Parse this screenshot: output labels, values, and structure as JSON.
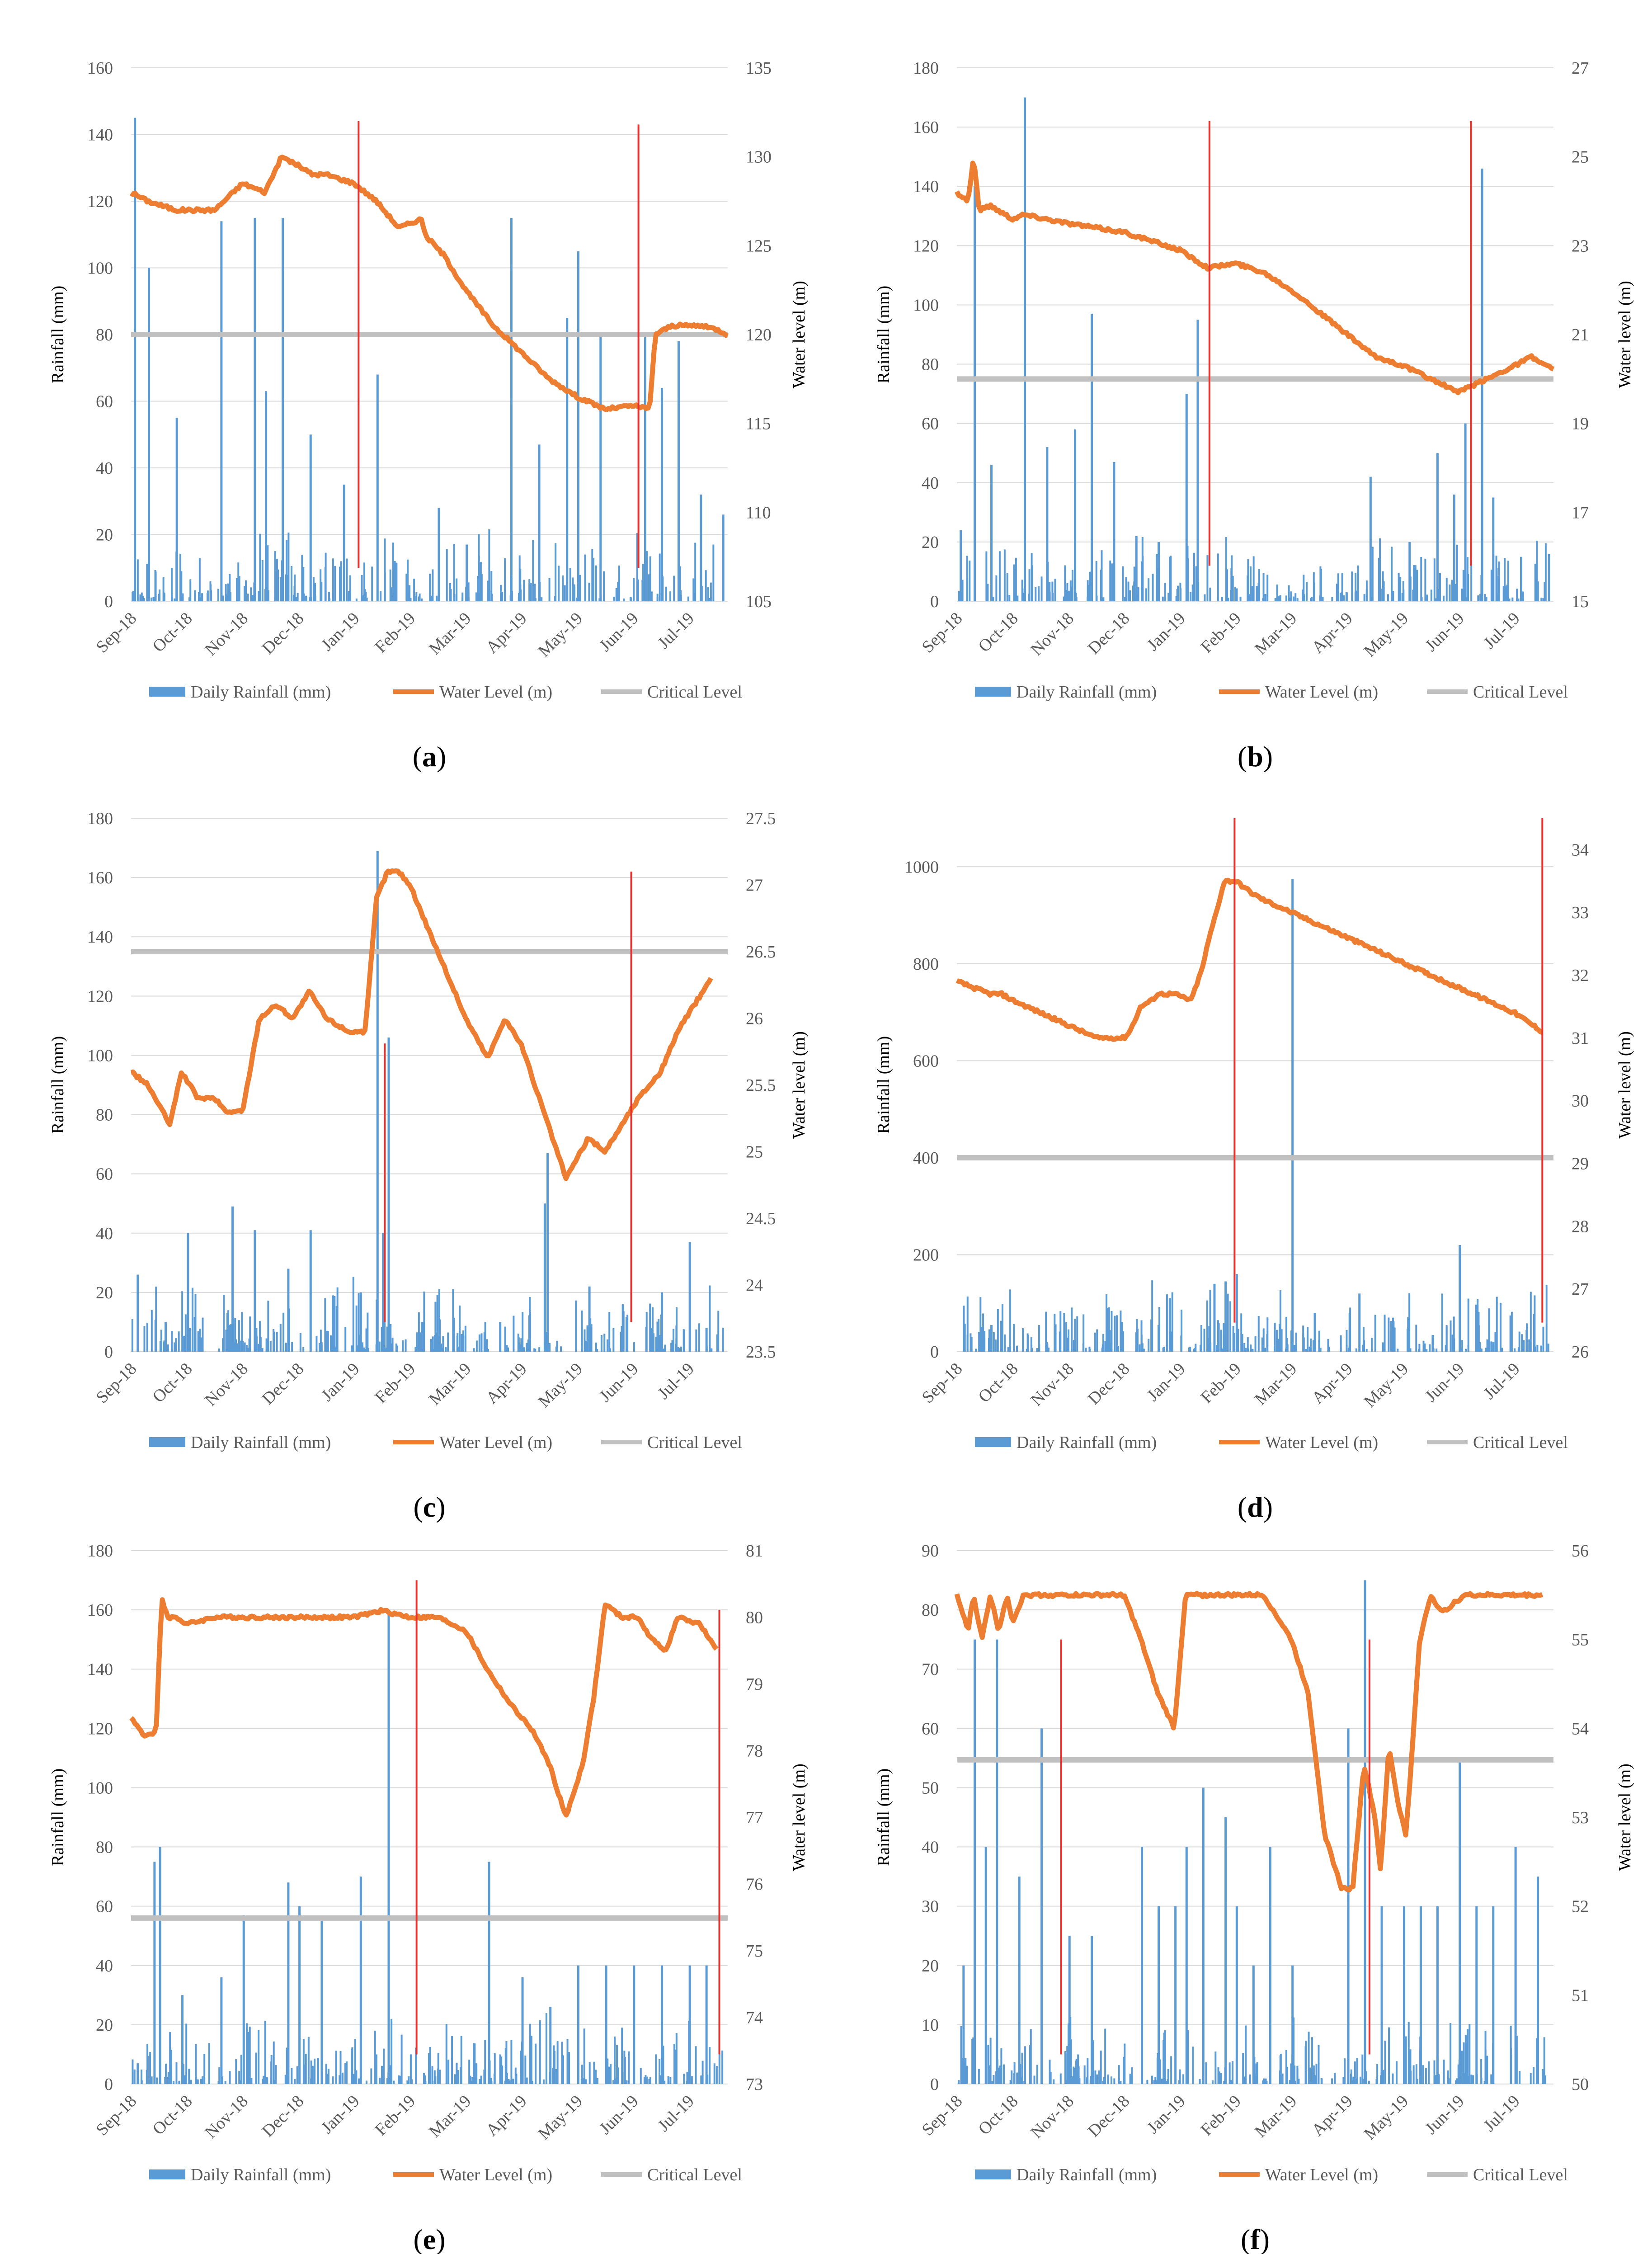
{
  "figure": {
    "colors": {
      "rain": "#5b9bd5",
      "level": "#ed7d31",
      "critical": "#c0c0c0",
      "marker": "#e8312c",
      "grid": "#d9d9d9",
      "text": "#595959"
    },
    "legend": {
      "rain": "Daily Rainfall (mm)",
      "level": "Water Level (m)",
      "critical": "Critical Level"
    }
  },
  "chart_data": [
    {
      "type": "bar+line",
      "panel_label": "a",
      "ylabel": "Rainfall (mm)",
      "y2label": "Water level (m)",
      "ylim": [
        0,
        160
      ],
      "yticks": [
        0,
        20,
        40,
        60,
        80,
        100,
        120,
        140,
        160
      ],
      "y2lim": [
        105,
        135
      ],
      "y2ticks": [
        105,
        110,
        115,
        120,
        125,
        130,
        135
      ],
      "xtick_labels": [
        "Sep-18",
        "Oct-18",
        "Nov-18",
        "Dec-18",
        "Jan-19",
        "Feb-19",
        "Mar-19",
        "Apr-19",
        "May-19",
        "Jun-19",
        "Jul-19"
      ],
      "critical_level": 80,
      "water_level": {
        "t": [
          0,
          0.3,
          0.8,
          1.5,
          2,
          2.4,
          2.7,
          3,
          3.25,
          3.5,
          4,
          4.4,
          4.8,
          5.2,
          5.3,
          5.6,
          6,
          6.5,
          7,
          7.5,
          8,
          8.5,
          9,
          9.3,
          9.4,
          9.7,
          10.2,
          10.5,
          10.7
        ],
        "values": [
          128,
          127.5,
          127,
          127,
          128.5,
          128,
          130,
          129.5,
          129,
          129,
          128.5,
          127.5,
          126,
          126.5,
          125.5,
          124.5,
          122.5,
          120.5,
          119,
          117.5,
          116.5,
          115.8,
          116,
          115.8,
          120,
          120.5,
          120.5,
          120.3,
          120
        ]
      },
      "rainfall_peaks": {
        "t": [
          0.05,
          0.3,
          0.8,
          1.6,
          2.2,
          2.4,
          2.7,
          3.2,
          3.8,
          4.4,
          5.5,
          6,
          6.8,
          7.3,
          7.8,
          8,
          8.4,
          9.2,
          9.5,
          9.8,
          10.2,
          10.6
        ],
        "values": [
          145,
          100,
          55,
          114,
          115,
          63,
          115,
          50,
          35,
          68,
          28,
          17,
          115,
          47,
          85,
          105,
          80,
          80,
          64,
          78,
          32,
          26
        ]
      },
      "markers": [
        {
          "t": 4.08,
          "top": 144,
          "bottom": 10
        },
        {
          "t": 9.1,
          "top": 143,
          "bottom": 10
        }
      ]
    },
    {
      "type": "bar+line",
      "panel_label": "b",
      "ylabel": "Rainfall (mm)",
      "y2label": "Water level (m)",
      "ylim": [
        0,
        180
      ],
      "yticks": [
        0,
        20,
        40,
        60,
        80,
        100,
        120,
        140,
        160,
        180
      ],
      "y2lim": [
        15,
        27
      ],
      "y2ticks": [
        15,
        17,
        19,
        21,
        23,
        25,
        27
      ],
      "xtick_labels": [
        "Sep-18",
        "Oct-18",
        "Nov-18",
        "Dec-18",
        "Jan-19",
        "Feb-19",
        "Mar-19",
        "Apr-19",
        "May-19",
        "Jun-19",
        "Jul-19"
      ],
      "critical_level": 75,
      "water_level": {
        "t": [
          0,
          0.2,
          0.3,
          0.4,
          0.6,
          1,
          1.2,
          1.6,
          2,
          2.5,
          3,
          3.5,
          4,
          4.5,
          5,
          5.5,
          6,
          6.5,
          7,
          7.5,
          8,
          8.5,
          9,
          9.5,
          10,
          10.3,
          10.7
        ],
        "values": [
          24.2,
          24,
          25,
          23.8,
          23.9,
          23.6,
          23.7,
          23.6,
          23.5,
          23.4,
          23.3,
          23.1,
          22.9,
          22.5,
          22.6,
          22.4,
          22,
          21.5,
          21,
          20.5,
          20.3,
          20,
          19.7,
          20,
          20.3,
          20.5,
          20.2
        ]
      },
      "rainfall_peaks": {
        "t": [
          0.05,
          0.3,
          0.6,
          1.2,
          1.6,
          2.1,
          2.4,
          2.8,
          3.2,
          3.6,
          4.1,
          4.3,
          6.5,
          7.4,
          8.1,
          8.6,
          8.9,
          9.1,
          9.4,
          9.6,
          10.1,
          10.6
        ],
        "values": [
          24,
          140,
          46,
          170,
          52,
          58,
          97,
          47,
          22,
          20,
          70,
          95,
          2,
          42,
          20,
          50,
          36,
          60,
          146,
          35,
          15,
          16
        ]
      },
      "markers": [
        {
          "t": 4.53,
          "top": 162,
          "bottom": 12
        },
        {
          "t": 9.22,
          "top": 162,
          "bottom": 12
        }
      ]
    },
    {
      "type": "bar+line",
      "panel_label": "c",
      "ylabel": "Rainfall (mm)",
      "y2label": "Water level (m)",
      "ylim": [
        0,
        180
      ],
      "yticks": [
        0,
        20,
        40,
        60,
        80,
        100,
        120,
        140,
        160,
        180
      ],
      "y2lim": [
        23.5,
        27.5
      ],
      "y2ticks": [
        23.5,
        24,
        24.5,
        25,
        25.5,
        26,
        26.5,
        27,
        27.5
      ],
      "xtick_labels": [
        "Sep-18",
        "Oct-18",
        "Nov-18",
        "Dec-18",
        "Jan-19",
        "Feb-19",
        "Mar-19",
        "Apr-19",
        "May-19",
        "Jun-19",
        "Jul-19"
      ],
      "critical_level": 135,
      "water_level": {
        "t": [
          0,
          0.3,
          0.7,
          0.9,
          1.2,
          1.5,
          1.7,
          2,
          2.3,
          2.6,
          2.9,
          3.2,
          3.5,
          3.9,
          4.2,
          4.4,
          4.6,
          4.8,
          5,
          5.3,
          5.6,
          6,
          6.4,
          6.7,
          7,
          7.4,
          7.8,
          8.2,
          8.5,
          8.8,
          9.1,
          9.5,
          9.8,
          10.1,
          10.4
        ],
        "values": [
          25.6,
          25.5,
          25.2,
          25.6,
          25.4,
          25.4,
          25.3,
          25.3,
          26,
          26.1,
          26,
          26.2,
          26,
          25.9,
          25.9,
          26.9,
          27.1,
          27.1,
          27,
          26.7,
          26.4,
          26,
          25.7,
          26,
          25.8,
          25.3,
          24.8,
          25.1,
          25.0,
          25.2,
          25.4,
          25.6,
          25.9,
          26.1,
          26.3
        ]
      },
      "rainfall_peaks": {
        "t": [
          0.1,
          0.6,
          1,
          1.8,
          2.2,
          2.8,
          3.2,
          3.6,
          4.1,
          4.4,
          4.5,
          4.6,
          5.2,
          6.6,
          7.4,
          7.45,
          8.2,
          8.8,
          9.5,
          10.0,
          10.3
        ],
        "values": [
          26,
          10,
          40,
          49,
          41,
          28,
          41,
          19,
          20,
          169,
          40,
          106,
          10,
          10,
          50,
          67,
          22,
          16,
          20,
          37,
          8
        ]
      },
      "markers": [
        {
          "t": 4.55,
          "top": 104,
          "bottom": 10
        },
        {
          "t": 8.97,
          "top": 162,
          "bottom": 10
        }
      ]
    },
    {
      "type": "bar+line",
      "panel_label": "d",
      "ylabel": "Rainfall (mm)",
      "y2label": "Water level (m)",
      "ylim": [
        0,
        1100
      ],
      "yticks": [
        0,
        200,
        400,
        600,
        800,
        1000
      ],
      "y2lim": [
        26,
        34.5
      ],
      "y2ticks": [
        26,
        27,
        28,
        29,
        30,
        31,
        32,
        33,
        34
      ],
      "xtick_labels": [
        "Sep-18",
        "Oct-18",
        "Nov-18",
        "Dec-18",
        "Jan-19",
        "Feb-19",
        "Mar-19",
        "Apr-19",
        "May-19",
        "Jun-19",
        "Jul-19"
      ],
      "critical_level": 400,
      "water_level": {
        "t": [
          0,
          0.3,
          0.6,
          0.8,
          1,
          1.5,
          2,
          2.5,
          3,
          3.1,
          3.3,
          3.5,
          3.6,
          3.9,
          4.2,
          4.4,
          4.5,
          4.8,
          5,
          5.3,
          5.5,
          6,
          6.5,
          7,
          7.5,
          8,
          8.5,
          9,
          9.5,
          10,
          10.5
        ],
        "values": [
          31.9,
          31.8,
          31.7,
          31.7,
          31.6,
          31.4,
          31.2,
          31,
          31,
          31.1,
          31.5,
          31.6,
          31.7,
          31.7,
          31.6,
          32.1,
          32.5,
          33.5,
          33.5,
          33.3,
          33.2,
          33,
          32.8,
          32.6,
          32.4,
          32.2,
          32,
          31.8,
          31.6,
          31.4,
          31.1
        ]
      },
      "rainfall_peaks": {
        "t": [
          0.6,
          1.6,
          2.6,
          3.2,
          3.6,
          3.8,
          4.6,
          4.8,
          5.0,
          6.0,
          6.4,
          7.2,
          8.4,
          9.0,
          9.6,
          10.2
        ],
        "values": [
          55,
          15,
          15,
          40,
          55,
          110,
          140,
          145,
          160,
          975,
          80,
          120,
          5,
          220,
          20,
          45
        ]
      },
      "markers": [
        {
          "t": 4.98,
          "top": 1100,
          "bottom": 60
        },
        {
          "t": 10.5,
          "top": 1100,
          "bottom": 60
        }
      ]
    },
    {
      "type": "bar+line",
      "panel_label": "e",
      "ylabel": "Rainfall (mm)",
      "y2label": "Water level (m)",
      "ylim": [
        0,
        180
      ],
      "yticks": [
        0,
        20,
        40,
        60,
        80,
        100,
        120,
        140,
        160,
        180
      ],
      "y2lim": [
        73,
        81
      ],
      "y2ticks": [
        73,
        74,
        75,
        76,
        77,
        78,
        79,
        80,
        81
      ],
      "xtick_labels": [
        "Sep-18",
        "Oct-18",
        "Nov-18",
        "Dec-18",
        "Jan-19",
        "Feb-19",
        "Mar-19",
        "Apr-19",
        "May-19",
        "Jun-19",
        "Jul-19"
      ],
      "critical_level": 56,
      "water_level": {
        "t": [
          0,
          0.25,
          0.45,
          0.55,
          0.65,
          0.8,
          1,
          1.5,
          2,
          2.5,
          2.8,
          3,
          3.5,
          4,
          4.5,
          5,
          5.5,
          6,
          6.4,
          6.8,
          7,
          7.2,
          7.5,
          7.8,
          8.1,
          8.3,
          8.5,
          8.8,
          9.1,
          9.3,
          9.6,
          9.8,
          10.2,
          10.5
        ],
        "values": [
          78.5,
          78.2,
          78.3,
          80.3,
          80,
          80,
          79.9,
          80,
          80,
          80,
          80,
          80,
          80,
          80,
          80.1,
          80,
          80,
          79.8,
          79.2,
          78.7,
          78.5,
          78.3,
          77.8,
          77,
          77.8,
          78.8,
          80.2,
          80,
          80,
          79.7,
          79.5,
          80,
          79.9,
          79.5
        ]
      },
      "rainfall_peaks": {
        "t": [
          0.1,
          0.4,
          0.5,
          0.9,
          1.6,
          2.0,
          2.8,
          3.0,
          3.4,
          4.1,
          4.6,
          5.0,
          6.4,
          7.0,
          7.5,
          8.0,
          8.5,
          9.0,
          9.5,
          10.0,
          10.3
        ],
        "values": [
          7,
          75,
          80,
          30,
          36,
          57,
          68,
          60,
          55,
          70,
          160,
          10,
          75,
          36,
          26,
          40,
          40,
          40,
          40,
          40,
          40
        ]
      },
      "markers": [
        {
          "t": 5.12,
          "top": 170,
          "bottom": 10
        },
        {
          "t": 10.55,
          "top": 160,
          "bottom": 10
        }
      ]
    },
    {
      "type": "bar+line",
      "panel_label": "f",
      "ylabel": "Rainfall (mm)",
      "y2label": "Water level (m)",
      "ylim": [
        0,
        90
      ],
      "yticks": [
        0,
        10,
        20,
        30,
        40,
        50,
        60,
        70,
        80,
        90
      ],
      "y2lim": [
        50,
        56
      ],
      "y2ticks": [
        50,
        51,
        52,
        53,
        54,
        55,
        56
      ],
      "xtick_labels": [
        "Sep-18",
        "Oct-18",
        "Nov-18",
        "Dec-18",
        "Jan-19",
        "Feb-19",
        "Mar-19",
        "Apr-19",
        "May-19",
        "Jun-19",
        "Jul-19"
      ],
      "critical_level": 54.7,
      "water_level": {
        "t": [
          0,
          0.2,
          0.3,
          0.45,
          0.6,
          0.75,
          0.9,
          1.0,
          1.2,
          1.5,
          2,
          2.5,
          3,
          3.3,
          3.6,
          3.9,
          4.1,
          4.3,
          4.6,
          5,
          5.5,
          5.8,
          6,
          6.3,
          6.6,
          6.9,
          7.1,
          7.3,
          7.5,
          7.6,
          7.75,
          7.9,
          8.05,
          8.15,
          8.3,
          8.5,
          8.7,
          8.9,
          9.1,
          9.2,
          9.4,
          9.6,
          10,
          10.5
        ],
        "values": [
          55.5,
          55.1,
          55.5,
          55,
          55.5,
          55.1,
          55.5,
          55.2,
          55.5,
          55.5,
          55.5,
          55.5,
          55.5,
          55.0,
          54.4,
          54.0,
          55.5,
          55.5,
          55.5,
          55.5,
          55.5,
          55.2,
          55.0,
          54.4,
          52.8,
          52.2,
          52.2,
          53.6,
          53.0,
          52.4,
          53.8,
          53.2,
          52.8,
          53.6,
          55.0,
          55.5,
          55.3,
          55.4,
          55.5,
          55.5,
          55.5,
          55.5,
          55.5,
          55.5
        ]
      },
      "rainfall_peaks": {
        "t": [
          0.1,
          0.3,
          0.5,
          0.7,
          1.1,
          1.5,
          2.0,
          2.4,
          3.3,
          3.6,
          3.9,
          4.1,
          4.4,
          4.8,
          5.0,
          5.3,
          5.6,
          6.0,
          7.0,
          7.3,
          7.6,
          8.0,
          8.3,
          8.6,
          9.0,
          9.3,
          9.6,
          10.0,
          10.4
        ],
        "values": [
          20,
          75,
          40,
          75,
          35,
          60,
          25,
          25,
          40,
          30,
          30,
          40,
          50,
          45,
          30,
          20,
          40,
          20,
          60,
          85,
          30,
          30,
          30,
          30,
          55,
          30,
          30,
          40,
          35
        ]
      },
      "markers": [
        {
          "t": 1.87,
          "top": 75,
          "bottom": 5
        },
        {
          "t": 7.4,
          "top": 75,
          "bottom": 5
        }
      ]
    }
  ]
}
